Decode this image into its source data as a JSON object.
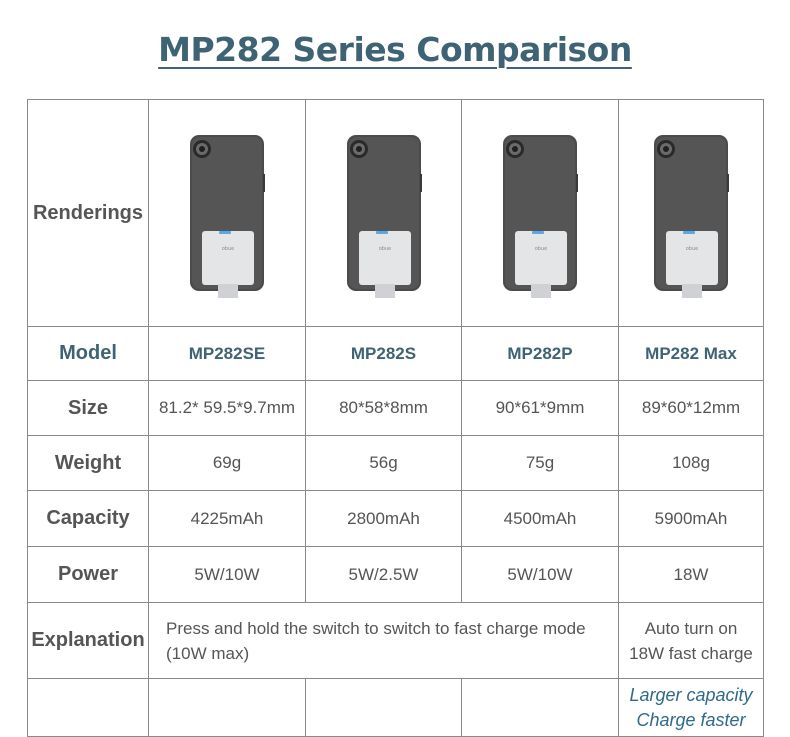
{
  "title": "MP282 Series Comparison",
  "rows": {
    "renderings": "Renderings",
    "model": "Model",
    "size": "Size",
    "weight": "Weight",
    "capacity": "Capacity",
    "power": "Power",
    "explanation": "Explanation"
  },
  "models": [
    {
      "name": "MP282SE",
      "size": "81.2* 59.5*9.7mm",
      "weight": "69g",
      "capacity": "4225mAh",
      "power": "5W/10W",
      "image": "phone-with-battery-pack"
    },
    {
      "name": "MP282S",
      "size": "80*58*8mm",
      "weight": "56g",
      "capacity": "2800mAh",
      "power": "5W/2.5W",
      "image": "phone-with-battery-pack"
    },
    {
      "name": "MP282P",
      "size": "90*61*9mm",
      "weight": "75g",
      "capacity": "4500mAh",
      "power": "5W/10W",
      "image": "phone-with-battery-pack"
    },
    {
      "name": "MP282 Max",
      "size": "89*60*12mm",
      "weight": "108g",
      "capacity": "5900mAh",
      "power": "18W",
      "image": "phone-with-battery-pack"
    }
  ],
  "explanation": {
    "shared_line1": "Press and hold the switch to switch to fast charge mode",
    "shared_line2": "(10W max)",
    "max_line1": "Auto turn on",
    "max_line2": "18W fast charge"
  },
  "note": {
    "line1": "Larger capacity",
    "line2": "Charge faster"
  },
  "brand_text": "obue",
  "colors": {
    "title": "#3e6374",
    "model_text": "#3e6374",
    "note_text": "#2f6a8a",
    "phone_body": "#4b4b4b",
    "battery_pack": "#e4e5e7",
    "indicator": "#5aa9e6"
  }
}
